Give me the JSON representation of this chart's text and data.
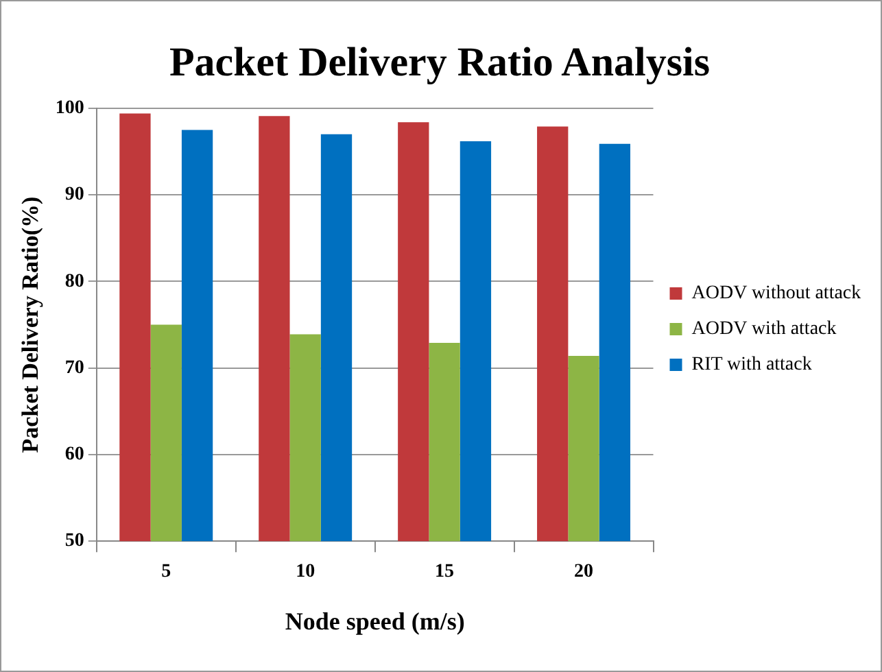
{
  "chart_data": {
    "type": "bar",
    "title": "Packet Delivery Ratio Analysis",
    "xlabel": "Node speed (m/s)",
    "ylabel": "Packet Delivery Ratio(%)",
    "categories": [
      "5",
      "10",
      "15",
      "20"
    ],
    "series": [
      {
        "name": "AODV without attack",
        "color": "#c0393b",
        "values": [
          99.4,
          99.1,
          98.4,
          97.9
        ]
      },
      {
        "name": "AODV with attack",
        "color": "#8db545",
        "values": [
          75,
          73.9,
          72.9,
          71.4
        ]
      },
      {
        "name": "RIT with attack",
        "color": "#0070c0",
        "values": [
          97.5,
          97,
          96.2,
          95.9
        ]
      }
    ],
    "ylim": [
      50,
      100
    ],
    "yticks": [
      50,
      60,
      70,
      80,
      90,
      100
    ],
    "grid": "y",
    "legend": "right"
  }
}
